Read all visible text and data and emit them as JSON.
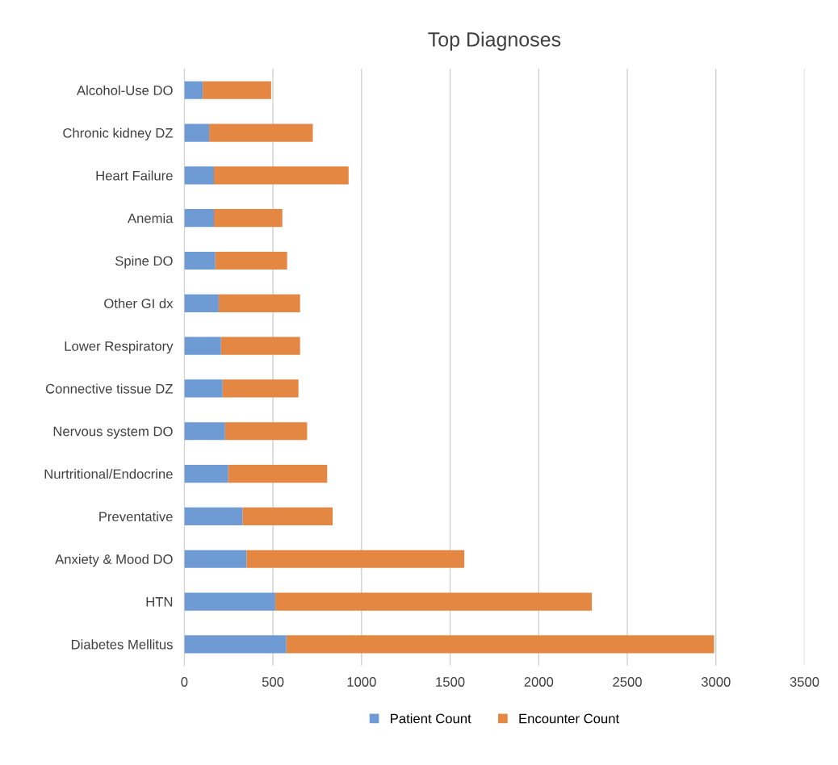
{
  "chart_data": {
    "type": "bar",
    "title": "Top Diagnoses",
    "orientation": "horizontal",
    "stacked": true,
    "categories": [
      "Alcohol-Use DO",
      "Chronic kidney DZ",
      "Heart Failure",
      "Anemia",
      "Spine DO",
      "Other GI dx",
      "Lower Respiratory",
      "Connective tissue DZ",
      "Nervous system DO",
      "Nurtritional/Endocrine",
      "Preventative",
      "Anxiety & Mood DO",
      "HTN",
      "Diabetes Mellitus"
    ],
    "series": [
      {
        "name": "Patient Count",
        "color": "#6f9bd5",
        "values": [
          104,
          140,
          167,
          167,
          175,
          194,
          207,
          216,
          230,
          248,
          329,
          351,
          513,
          576
        ]
      },
      {
        "name": "Encounter Count",
        "color": "#e38743",
        "values": [
          386,
          585,
          760,
          386,
          405,
          459,
          446,
          428,
          463,
          558,
          508,
          1229,
          1787,
          2414
        ]
      }
    ],
    "xlim": [
      0,
      3500
    ],
    "xticks": [
      0,
      500,
      1000,
      1500,
      2000,
      2500,
      3000,
      3500
    ],
    "grid": "x",
    "legend": "bottom"
  }
}
